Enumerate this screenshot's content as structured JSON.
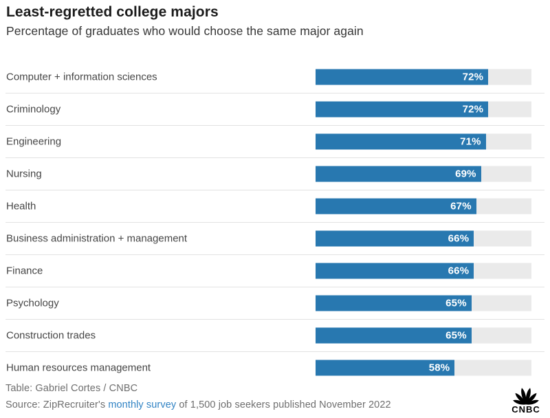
{
  "header": {
    "title": "Least-regretted college majors",
    "subtitle": "Percentage of graduates who would choose the same major again"
  },
  "chart_data": {
    "type": "bar",
    "orientation": "horizontal",
    "title": "Least-regretted college majors",
    "subtitle": "Percentage of graduates who would choose the same major again",
    "categories": [
      "Computer + information sciences",
      "Criminology",
      "Engineering",
      "Nursing",
      "Health",
      "Business administration + management",
      "Finance",
      "Psychology",
      "Construction trades",
      "Human resources management"
    ],
    "values": [
      72,
      72,
      71,
      69,
      67,
      66,
      66,
      65,
      65,
      58
    ],
    "value_labels": [
      "72%",
      "72%",
      "71%",
      "69%",
      "67%",
      "66%",
      "66%",
      "65%",
      "65%",
      "58%"
    ],
    "unit": "%",
    "xlim": [
      0,
      90
    ],
    "grid": false,
    "legend": false,
    "bar_color": "#2878b0",
    "track_color": "#eaeaea",
    "value_label_position": "inside-end"
  },
  "footer": {
    "table_credit": "Table: Gabriel Cortes / CNBC",
    "source_prefix": "Source: ZipRecruiter's ",
    "source_link": "monthly survey",
    "source_suffix": " of 1,500 job seekers published November 2022",
    "logo_text": "CNBC"
  },
  "colors": {
    "bar": "#2878b0",
    "track": "#eaeaea",
    "separator": "#e2e2e2",
    "title_text": "#1b1b1b",
    "subtitle_text": "#363636",
    "label_text": "#464646",
    "footer_text": "#6e6e6e",
    "link": "#3183c4",
    "background": "#ffffff"
  }
}
